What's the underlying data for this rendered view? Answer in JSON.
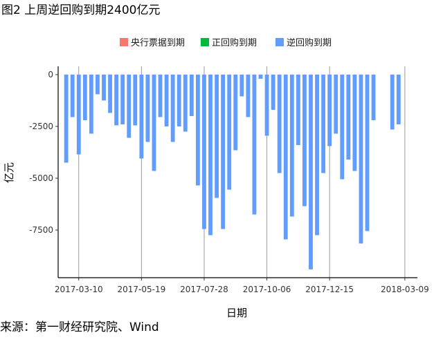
{
  "figure": {
    "title": "图2 上周逆回购到期2400亿元",
    "source": "来源：第一财经研究院、Wind"
  },
  "chart_data": {
    "type": "bar",
    "xlabel": "日期",
    "ylabel": "亿元",
    "ylim": [
      -9800,
      400
    ],
    "yticks": [
      0,
      -2500,
      -5000,
      -7500
    ],
    "ytick_labels": [
      "0",
      "-2500",
      "-5000",
      "-7500"
    ],
    "xlim": [
      "2017-02-15",
      "2018-03-23"
    ],
    "xticks": [
      "2017-03-10",
      "2017-05-19",
      "2017-07-28",
      "2017-10-06",
      "2017-12-15",
      "2018-03-09"
    ],
    "grid": "vertical-major",
    "legend": {
      "position": "top",
      "entries": [
        {
          "name": "央行票据到期",
          "color": "#F8766D"
        },
        {
          "name": "正回购到期",
          "color": "#00BA38"
        },
        {
          "name": "逆回购到期",
          "color": "#619CFF"
        }
      ]
    },
    "bar_width_days": 4.5,
    "series": [
      {
        "name": "逆回购到期",
        "color": "#619CFF",
        "x": [
          "2017-02-24",
          "2017-03-03",
          "2017-03-10",
          "2017-03-17",
          "2017-03-24",
          "2017-03-31",
          "2017-04-07",
          "2017-04-14",
          "2017-04-21",
          "2017-04-28",
          "2017-05-05",
          "2017-05-12",
          "2017-05-19",
          "2017-05-26",
          "2017-06-02",
          "2017-06-09",
          "2017-06-16",
          "2017-06-23",
          "2017-06-30",
          "2017-07-07",
          "2017-07-14",
          "2017-07-21",
          "2017-07-28",
          "2017-08-04",
          "2017-08-11",
          "2017-08-18",
          "2017-08-25",
          "2017-09-01",
          "2017-09-08",
          "2017-09-15",
          "2017-09-22",
          "2017-09-29",
          "2017-10-06",
          "2017-10-13",
          "2017-10-20",
          "2017-10-27",
          "2017-11-03",
          "2017-11-10",
          "2017-11-17",
          "2017-11-24",
          "2017-12-01",
          "2017-12-08",
          "2017-12-15",
          "2017-12-22",
          "2017-12-29",
          "2018-01-05",
          "2018-01-12",
          "2018-01-19",
          "2018-01-26",
          "2018-02-02",
          "2018-02-09",
          "2018-02-16",
          "2018-02-23",
          "2018-03-02",
          "2018-03-09"
        ],
        "values": [
          -4250,
          -2050,
          -3850,
          -2200,
          -2850,
          -950,
          -1250,
          -1850,
          -2450,
          -2400,
          -3050,
          -2450,
          -4050,
          -3250,
          -4650,
          -2050,
          -2500,
          -3250,
          -2500,
          -2750,
          -2000,
          -5350,
          -7450,
          -7750,
          -5950,
          -7450,
          -5550,
          -3650,
          -1050,
          -2050,
          -6750,
          -200,
          -2950,
          -1700,
          -4750,
          -7950,
          -6850,
          -3400,
          -6350,
          -9400,
          -7750,
          -4750,
          -3450,
          -2850,
          -5050,
          -4100,
          -4650,
          -8150,
          -7550,
          -2200,
          0,
          0,
          -2650,
          -2400,
          0
        ]
      }
    ]
  }
}
